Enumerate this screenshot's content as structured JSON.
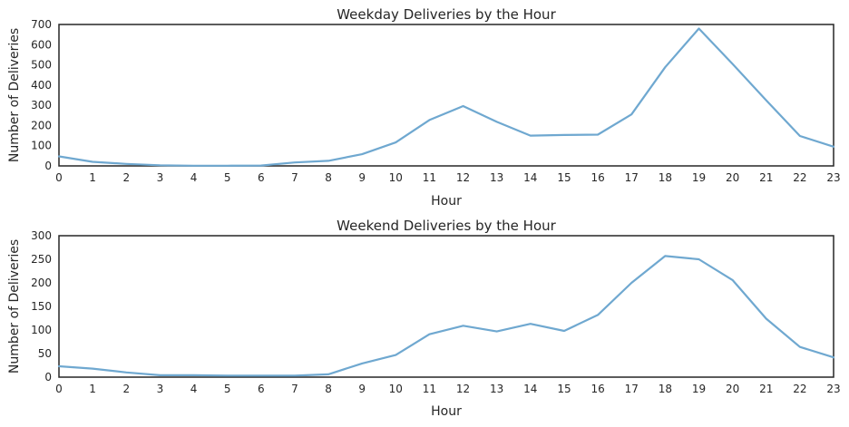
{
  "chart_data": [
    {
      "type": "line",
      "title": "Weekday Deliveries by the Hour",
      "xlabel": "Hour",
      "ylabel": "Number of Deliveries",
      "x": [
        0,
        1,
        2,
        3,
        4,
        5,
        6,
        7,
        8,
        9,
        10,
        11,
        12,
        13,
        14,
        15,
        16,
        17,
        18,
        19,
        20,
        21,
        22,
        23
      ],
      "xlim": [
        0,
        23
      ],
      "ylim": [
        0,
        700
      ],
      "yticks": [
        0,
        100,
        200,
        300,
        400,
        500,
        600,
        700
      ],
      "grid": false,
      "color": "#6fa8d0",
      "series": [
        {
          "values": [
            47,
            20,
            10,
            3,
            1,
            1,
            2,
            17,
            25,
            58,
            116,
            227,
            296,
            218,
            150,
            153,
            155,
            255,
            488,
            680,
            505,
            325,
            148,
            95
          ]
        }
      ]
    },
    {
      "type": "line",
      "title": "Weekend Deliveries by the Hour",
      "xlabel": "Hour",
      "ylabel": "Number of Deliveries",
      "x": [
        0,
        1,
        2,
        3,
        4,
        5,
        6,
        7,
        8,
        9,
        10,
        11,
        12,
        13,
        14,
        15,
        16,
        17,
        18,
        19,
        20,
        21,
        22,
        23
      ],
      "xlim": [
        0,
        23
      ],
      "ylim": [
        0,
        300
      ],
      "yticks": [
        0,
        50,
        100,
        150,
        200,
        250,
        300
      ],
      "grid": false,
      "color": "#6fa8d0",
      "series": [
        {
          "values": [
            23,
            18,
            10,
            4,
            4,
            3,
            3,
            3,
            6,
            29,
            47,
            91,
            109,
            97,
            113,
            98,
            132,
            200,
            257,
            250,
            206,
            124,
            64,
            42
          ]
        }
      ]
    }
  ]
}
